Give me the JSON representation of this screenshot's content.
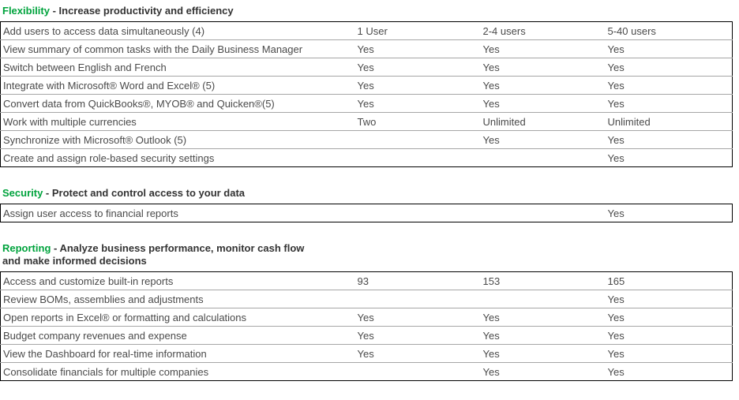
{
  "page": {
    "accent_green": "#00A33D",
    "heading_text_color": "#333333",
    "cell_text_color": "#4a4a4a"
  },
  "columns": {
    "tier_labels_note": "tier labels shown in first row of flexibility table",
    "tiers": [
      "1 User",
      "2-4 users",
      "5-40 users"
    ]
  },
  "sections": [
    {
      "id": "flexibility",
      "title": "Flexibility",
      "subtitle": " - Increase productivity and efficiency",
      "rows": [
        {
          "feature": "Add users to access data simultaneously (4)",
          "values": [
            "1 User",
            "2-4 users",
            "5-40 users"
          ]
        },
        {
          "feature": "View summary of common tasks with the Daily Business Manager",
          "values": [
            "Yes",
            "Yes",
            "Yes"
          ]
        },
        {
          "feature": "Switch between English and French",
          "values": [
            "Yes",
            "Yes",
            "Yes"
          ]
        },
        {
          "feature": "Integrate with Microsoft® Word and Excel® (5)",
          "values": [
            "Yes",
            "Yes",
            "Yes"
          ]
        },
        {
          "feature": "Convert data from QuickBooks®, MYOB® and Quicken®(5)",
          "values": [
            "Yes",
            "Yes",
            "Yes"
          ]
        },
        {
          "feature": "Work with multiple currencies",
          "values": [
            "Two",
            "Unlimited",
            "Unlimited"
          ]
        },
        {
          "feature": "Synchronize with Microsoft® Outlook (5)",
          "values": [
            "",
            "Yes",
            "Yes"
          ]
        },
        {
          "feature": "Create and assign role-based security settings",
          "values": [
            "",
            "",
            "Yes"
          ]
        }
      ]
    },
    {
      "id": "security",
      "title": "Security",
      "subtitle": " - Protect and control access to your data",
      "rows": [
        {
          "feature": "Assign user access to financial reports",
          "values": [
            "",
            "",
            "Yes"
          ]
        }
      ]
    },
    {
      "id": "reporting",
      "title": "Reporting",
      "subtitle": " - Analyze business performance, monitor cash flow and make informed decisions",
      "rows": [
        {
          "feature": "Access and customize built-in reports",
          "values": [
            "93",
            "153",
            "165"
          ]
        },
        {
          "feature": "Review BOMs, assemblies and adjustments",
          "values": [
            "",
            "",
            "Yes"
          ]
        },
        {
          "feature": "Open reports in Excel® or formatting and calculations",
          "values": [
            "Yes",
            "Yes",
            "Yes"
          ]
        },
        {
          "feature": "Budget company revenues and expense",
          "values": [
            "Yes",
            "Yes",
            "Yes"
          ]
        },
        {
          "feature": "View the Dashboard for real-time information",
          "values": [
            "Yes",
            "Yes",
            "Yes"
          ]
        },
        {
          "feature": "Consolidate financials for multiple companies",
          "values": [
            "",
            "Yes",
            "Yes"
          ]
        }
      ]
    }
  ]
}
